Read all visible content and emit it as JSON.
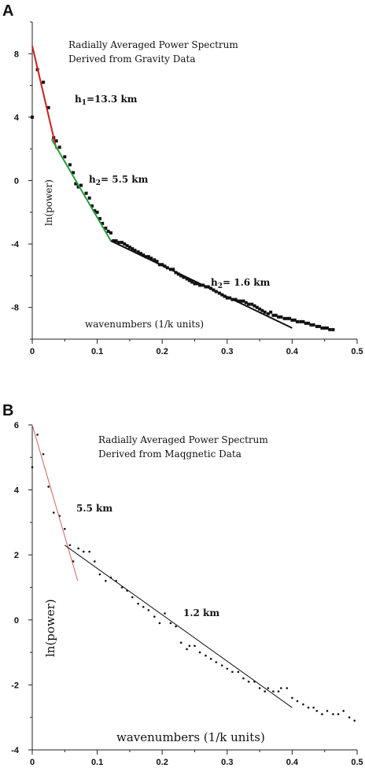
{
  "chart_data": [
    {
      "panel": "A",
      "type": "scatter",
      "title": [
        "Radially Averaged Power Spectrum",
        "Derived from Gravity Data"
      ],
      "xlabel": "wavenumbers (1/k units)",
      "ylabel": "ln(power)",
      "xlim": [
        0,
        0.5
      ],
      "ylim": [
        -10,
        10
      ],
      "xticks": [
        0,
        0.1,
        0.2,
        0.3,
        0.4,
        0.5
      ],
      "yticks": [
        -8,
        -4,
        0,
        4,
        8
      ],
      "xtick_labels": [
        "0",
        "0.1",
        "0.2",
        "0.3",
        "0.4",
        "0.5"
      ],
      "ytick_labels": [
        "-8",
        "-4",
        "0",
        "4",
        "8"
      ],
      "marker": "square",
      "points": {
        "x": [
          0.0,
          0.008,
          0.017,
          0.025,
          0.033,
          0.037,
          0.042,
          0.05,
          0.058,
          0.063,
          0.067,
          0.071,
          0.075,
          0.083,
          0.088,
          0.092,
          0.096,
          0.1,
          0.104,
          0.108,
          0.113,
          0.117,
          0.121,
          0.125,
          0.129,
          0.133,
          0.138,
          0.142,
          0.146,
          0.15,
          0.154,
          0.158,
          0.163,
          0.167,
          0.171,
          0.175,
          0.179,
          0.183,
          0.188,
          0.192,
          0.196,
          0.2,
          0.204,
          0.208,
          0.213,
          0.217,
          0.221,
          0.225,
          0.229,
          0.233,
          0.238,
          0.242,
          0.246,
          0.25,
          0.254,
          0.258,
          0.263,
          0.267,
          0.271,
          0.275,
          0.279,
          0.283,
          0.288,
          0.292,
          0.296,
          0.3,
          0.304,
          0.308,
          0.313,
          0.317,
          0.321,
          0.325,
          0.329,
          0.333,
          0.338,
          0.342,
          0.346,
          0.35,
          0.354,
          0.358,
          0.363,
          0.367,
          0.371,
          0.375,
          0.379,
          0.383,
          0.388,
          0.392,
          0.396,
          0.4,
          0.404,
          0.408,
          0.413,
          0.417,
          0.421,
          0.425,
          0.429,
          0.433,
          0.438,
          0.442,
          0.446,
          0.45,
          0.454,
          0.458,
          0.463
        ],
        "y": [
          4.0,
          7.0,
          6.2,
          4.6,
          2.7,
          2.5,
          2.1,
          1.5,
          1.0,
          0.5,
          -0.2,
          -0.4,
          -0.3,
          -0.8,
          -1.1,
          -1.6,
          -1.9,
          -2.0,
          -2.4,
          -2.7,
          -3.0,
          -3.2,
          -3.3,
          -3.8,
          -3.8,
          -3.9,
          -3.9,
          -4.0,
          -4.1,
          -4.2,
          -4.3,
          -4.4,
          -4.5,
          -4.6,
          -4.7,
          -4.8,
          -4.8,
          -4.9,
          -5.0,
          -5.1,
          -5.3,
          -5.3,
          -5.4,
          -5.5,
          -5.6,
          -5.6,
          -5.8,
          -5.9,
          -6.0,
          -6.1,
          -6.2,
          -6.3,
          -6.4,
          -6.5,
          -6.5,
          -6.6,
          -6.6,
          -6.7,
          -6.7,
          -6.8,
          -6.9,
          -7.0,
          -7.1,
          -7.2,
          -7.3,
          -7.4,
          -7.4,
          -7.5,
          -7.5,
          -7.6,
          -7.6,
          -7.6,
          -7.7,
          -7.8,
          -7.8,
          -7.9,
          -8.0,
          -8.1,
          -8.2,
          -8.3,
          -8.4,
          -8.3,
          -8.5,
          -8.5,
          -8.6,
          -8.6,
          -8.7,
          -8.7,
          -8.7,
          -8.8,
          -8.8,
          -8.9,
          -8.9,
          -8.9,
          -9.0,
          -9.0,
          -9.1,
          -9.1,
          -9.2,
          -9.2,
          -9.3,
          -9.3,
          -9.3,
          -9.4,
          -9.4
        ]
      },
      "fit_lines": [
        {
          "label": "h1=13.3 km",
          "color": "#cc1f1f",
          "x": [
            0.0,
            0.037
          ],
          "y": [
            8.5,
            2.0
          ]
        },
        {
          "label": "h2= 5.5 km",
          "color": "#2a9a3a",
          "x": [
            0.03,
            0.121
          ],
          "y": [
            2.6,
            -3.8
          ]
        },
        {
          "label": "h2= 1.6 km",
          "color": "#111111",
          "x": [
            0.121,
            0.4
          ],
          "y": [
            -3.8,
            -9.3
          ]
        }
      ]
    },
    {
      "panel": "B",
      "type": "scatter",
      "title": [
        "Radially Averaged Power Spectrum",
        "Derived from Maqgnetic Data"
      ],
      "xlabel": "wavenumbers (1/k units)",
      "ylabel": "ln(power)",
      "xlim": [
        0,
        0.5
      ],
      "ylim": [
        -4,
        6
      ],
      "xticks": [
        0,
        0.1,
        0.2,
        0.3,
        0.4,
        0.5
      ],
      "yticks": [
        -4,
        -2,
        0,
        2,
        4,
        6
      ],
      "xtick_labels": [
        "0",
        "0.1",
        "0.2",
        "0.3",
        "0.4",
        "0.5"
      ],
      "ytick_labels": [
        "-4",
        "-2",
        "0",
        "2",
        "4",
        "6"
      ],
      "marker": "dot",
      "points": {
        "x": [
          0.0,
          0.008,
          0.017,
          0.025,
          0.033,
          0.042,
          0.05,
          0.058,
          0.063,
          0.071,
          0.079,
          0.088,
          0.096,
          0.104,
          0.113,
          0.121,
          0.129,
          0.138,
          0.146,
          0.154,
          0.163,
          0.171,
          0.179,
          0.188,
          0.196,
          0.204,
          0.213,
          0.221,
          0.229,
          0.238,
          0.242,
          0.25,
          0.258,
          0.267,
          0.275,
          0.283,
          0.292,
          0.3,
          0.308,
          0.317,
          0.325,
          0.333,
          0.342,
          0.35,
          0.358,
          0.363,
          0.371,
          0.379,
          0.383,
          0.392,
          0.4,
          0.408,
          0.417,
          0.425,
          0.433,
          0.438,
          0.446,
          0.454,
          0.463,
          0.471,
          0.479,
          0.488,
          0.496
        ],
        "y": [
          4.7,
          5.7,
          5.1,
          4.1,
          3.3,
          3.2,
          2.8,
          2.3,
          1.8,
          2.2,
          2.1,
          2.1,
          1.8,
          1.4,
          1.2,
          1.3,
          1.2,
          1.0,
          0.9,
          0.7,
          0.5,
          0.4,
          0.3,
          0.1,
          -0.1,
          0.2,
          -0.1,
          -0.2,
          -0.7,
          -0.9,
          -0.8,
          -0.8,
          -1.0,
          -1.1,
          -1.2,
          -1.3,
          -1.4,
          -1.5,
          -1.6,
          -1.6,
          -1.8,
          -1.9,
          -1.9,
          -2.1,
          -2.2,
          -2.1,
          -2.2,
          -2.2,
          -2.1,
          -2.1,
          -2.4,
          -2.5,
          -2.6,
          -2.7,
          -2.7,
          -2.8,
          -2.9,
          -2.8,
          -2.9,
          -2.9,
          -2.8,
          -3.0,
          -3.1
        ]
      },
      "fit_lines": [
        {
          "label": "5.5 km",
          "color": "#d06060",
          "x": [
            0.0,
            0.07
          ],
          "y": [
            6.0,
            1.2
          ]
        },
        {
          "label": "1.2 km",
          "color": "#111111",
          "x": [
            0.05,
            0.4
          ],
          "y": [
            2.3,
            -2.7
          ]
        }
      ]
    }
  ]
}
